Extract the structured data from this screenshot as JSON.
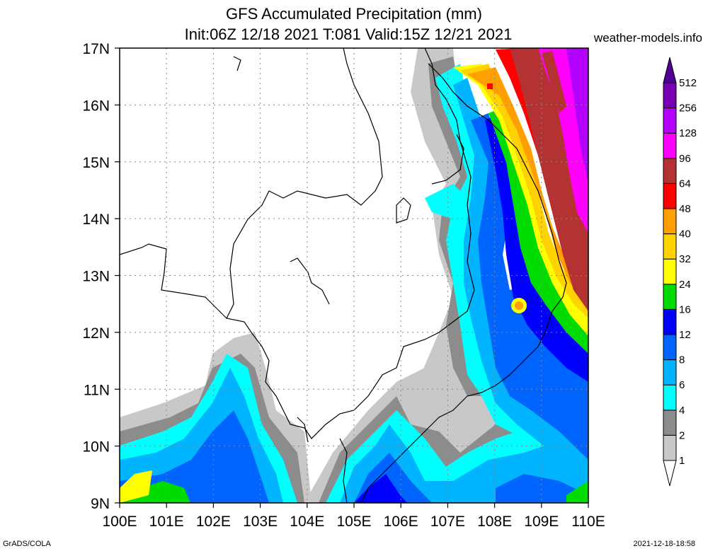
{
  "title": {
    "line1": "GFS Accumulated Precipitation (mm)",
    "line2": "Init:06Z 12/18 2021 T:081 Valid:15Z 12/21 2021"
  },
  "site": "weather-models.info",
  "credit": "GrADS/COLA",
  "timestamp": "2021-12-18-18:58",
  "axes": {
    "lat_labels": [
      "9N",
      "10N",
      "11N",
      "12N",
      "13N",
      "14N",
      "15N",
      "16N",
      "17N"
    ],
    "lon_labels": [
      "100E",
      "101E",
      "102E",
      "103E",
      "104E",
      "105E",
      "106E",
      "107E",
      "108E",
      "109E",
      "110E"
    ],
    "lat_range": [
      9,
      17
    ],
    "lon_range": [
      100,
      110
    ],
    "grid": "dotted"
  },
  "colorbar": {
    "labels": [
      "1",
      "2",
      "4",
      "6",
      "8",
      "12",
      "16",
      "24",
      "32",
      "40",
      "48",
      "64",
      "96",
      "128",
      "256",
      "512"
    ],
    "colors": [
      "#ffffff",
      "#c8c8c8",
      "#8c8c8c",
      "#00ffff",
      "#00b4ff",
      "#0064ff",
      "#0000ff",
      "#00dc00",
      "#ffff00",
      "#ffd200",
      "#ffa000",
      "#ff0000",
      "#b43232",
      "#ff00ff",
      "#b400ff",
      "#7800b4",
      "#500096"
    ]
  }
}
